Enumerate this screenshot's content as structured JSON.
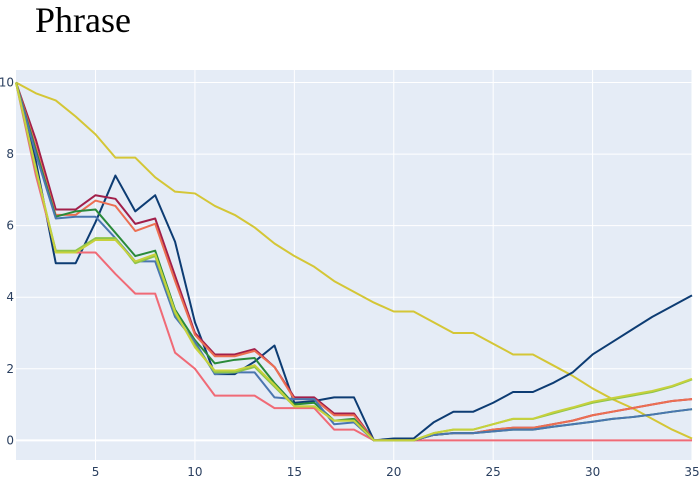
{
  "chart_data": {
    "type": "line",
    "title": "Phrase",
    "xlabel": "",
    "ylabel": "",
    "xlim": [
      1,
      35
    ],
    "ylim": [
      -0.55,
      10.35
    ],
    "xticks": [
      5,
      10,
      15,
      20,
      25,
      30,
      35
    ],
    "yticks": [
      0,
      2,
      4,
      6,
      8,
      10
    ],
    "grid": true,
    "legend": "none",
    "background": "#e5ecf6",
    "gridcolor": "#ffffff",
    "x": [
      1,
      2,
      3,
      4,
      5,
      6,
      7,
      8,
      9,
      10,
      11,
      12,
      13,
      14,
      15,
      16,
      17,
      18,
      19,
      20,
      21,
      22,
      23,
      24,
      25,
      26,
      27,
      28,
      29,
      30,
      31,
      32,
      33,
      34,
      35
    ],
    "series": [
      {
        "color": "#d4c636",
        "values": [
          10,
          9.7,
          9.5,
          9.05,
          8.55,
          7.9,
          7.9,
          7.35,
          6.95,
          6.9,
          6.55,
          6.3,
          5.95,
          5.5,
          5.15,
          4.85,
          4.45,
          4.15,
          3.85,
          3.6,
          3.6,
          3.3,
          3.0,
          3.0,
          2.7,
          2.4,
          2.4,
          2.1,
          1.8,
          1.45,
          1.15,
          0.9,
          0.6,
          0.3,
          0.05
        ]
      },
      {
        "color": "#0d3c73",
        "values": [
          10,
          7.8,
          4.95,
          4.95,
          6.1,
          7.4,
          6.4,
          6.85,
          5.55,
          3.3,
          1.85,
          1.85,
          2.2,
          2.65,
          1.05,
          1.1,
          1.2,
          1.2,
          0.0,
          0.05,
          0.05,
          0.5,
          0.8,
          0.8,
          1.05,
          1.35,
          1.35,
          1.6,
          1.9,
          2.4,
          2.75,
          3.1,
          3.45,
          3.75,
          4.05
        ]
      },
      {
        "color": "#f06a76",
        "values": [
          10,
          7.4,
          5.3,
          5.25,
          5.25,
          4.65,
          4.1,
          4.1,
          2.45,
          2.0,
          1.25,
          1.25,
          1.25,
          0.9,
          0.9,
          0.9,
          0.3,
          0.3,
          0.0,
          0.0,
          0.0,
          0.0,
          0.0,
          0.0,
          0.0,
          0.0,
          0.0,
          0.0,
          0.0,
          0.0,
          0.0,
          0.0,
          0.0,
          0.0,
          0.0
        ]
      },
      {
        "color": "#a21f4a",
        "values": [
          10,
          8.4,
          6.45,
          6.45,
          6.85,
          6.75,
          6.05,
          6.2,
          4.6,
          3.0,
          2.4,
          2.4,
          2.55,
          2.05,
          1.2,
          1.2,
          0.75,
          0.75,
          0.0,
          0.0,
          0.0,
          0.15,
          0.2,
          0.2,
          0.3,
          0.35,
          0.35,
          0.45,
          0.55,
          0.7,
          0.8,
          0.9,
          1.0,
          1.1,
          1.15
        ]
      },
      {
        "color": "#ec6f52",
        "values": [
          10,
          8.2,
          6.3,
          6.3,
          6.7,
          6.55,
          5.85,
          6.05,
          4.45,
          2.95,
          2.35,
          2.35,
          2.5,
          2.05,
          1.15,
          1.15,
          0.7,
          0.7,
          0.0,
          0.0,
          0.0,
          0.15,
          0.2,
          0.2,
          0.3,
          0.35,
          0.35,
          0.45,
          0.55,
          0.7,
          0.8,
          0.9,
          1.0,
          1.1,
          1.15
        ]
      },
      {
        "color": "#2a8a3a",
        "values": [
          10,
          8.1,
          6.25,
          6.4,
          6.45,
          5.8,
          5.15,
          5.3,
          3.65,
          2.8,
          2.15,
          2.25,
          2.3,
          1.6,
          1.0,
          1.05,
          0.55,
          0.6,
          0.0,
          0.0,
          0.0,
          0.15,
          0.2,
          0.2,
          0.25,
          0.3,
          0.3,
          0.38,
          0.45,
          0.52,
          0.6,
          0.65,
          0.72,
          0.8,
          0.87
        ]
      },
      {
        "color": "#4a76b0",
        "values": [
          10,
          8.0,
          6.2,
          6.25,
          6.25,
          5.65,
          5.0,
          5.0,
          3.45,
          2.75,
          1.85,
          1.9,
          1.9,
          1.2,
          1.15,
          1.15,
          0.45,
          0.5,
          0.0,
          0.0,
          0.0,
          0.15,
          0.2,
          0.2,
          0.25,
          0.3,
          0.3,
          0.38,
          0.45,
          0.52,
          0.6,
          0.65,
          0.72,
          0.8,
          0.87
        ]
      },
      {
        "color": "#8fc54a",
        "values": [
          10,
          7.55,
          5.3,
          5.3,
          5.65,
          5.65,
          4.95,
          5.15,
          3.55,
          2.65,
          1.9,
          1.9,
          2.05,
          1.5,
          0.95,
          0.95,
          0.55,
          0.55,
          0.0,
          0.0,
          0.0,
          0.2,
          0.3,
          0.3,
          0.45,
          0.6,
          0.6,
          0.75,
          0.9,
          1.05,
          1.15,
          1.25,
          1.35,
          1.5,
          1.7
        ]
      },
      {
        "color": "#c7d13c",
        "values": [
          10,
          7.6,
          5.25,
          5.25,
          5.6,
          5.6,
          5.0,
          5.2,
          3.6,
          2.6,
          1.95,
          1.95,
          2.1,
          1.55,
          0.95,
          0.95,
          0.55,
          0.55,
          0.0,
          0.0,
          0.0,
          0.2,
          0.3,
          0.3,
          0.45,
          0.6,
          0.6,
          0.78,
          0.92,
          1.08,
          1.18,
          1.28,
          1.38,
          1.52,
          1.72
        ]
      }
    ]
  }
}
